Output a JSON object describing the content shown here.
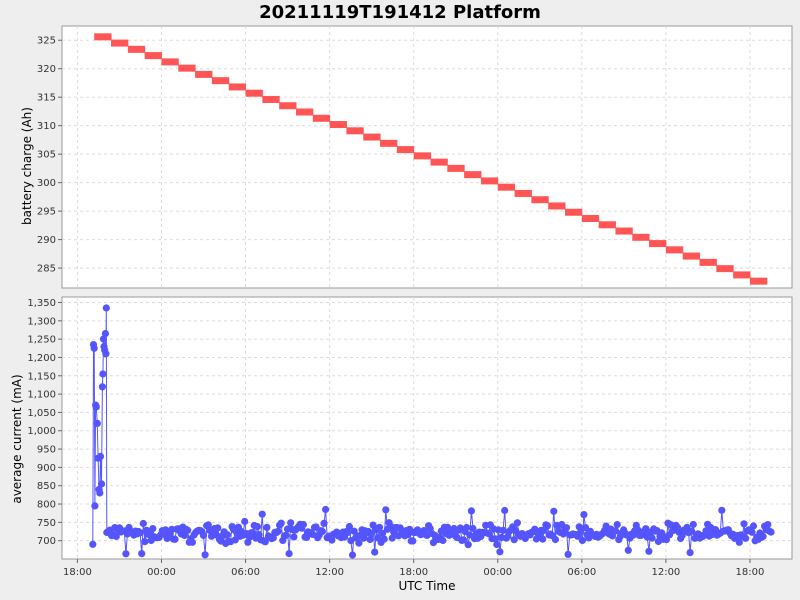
{
  "chart_data": {
    "title": "20211119T191412 Platform",
    "xlabel": "UTC Time",
    "x_ticks": [
      "18:00",
      "00:00",
      "06:00",
      "12:00",
      "18:00",
      "00:00",
      "06:00",
      "12:00",
      "18:00"
    ],
    "x_tick_hours": [
      0,
      6,
      12,
      18,
      24,
      30,
      36,
      42,
      48
    ],
    "x_range_hours": [
      -1.1,
      51.0
    ],
    "panels": [
      {
        "type": "line",
        "ylabel": "battery charge (Ah)",
        "ylim": [
          281.5,
          327.5
        ],
        "y_ticks": [
          "285",
          "290",
          "295",
          "300",
          "305",
          "310",
          "315",
          "320",
          "325"
        ],
        "y_tick_values": [
          285,
          290,
          295,
          300,
          305,
          310,
          315,
          320,
          325
        ],
        "grid": true,
        "color": "#ff5555",
        "series": [
          {
            "x_start_hours": 1.2,
            "x_end_hours": 49.2,
            "start_value": 325.6,
            "end_value": 282.7,
            "step_value": 1.1
          }
        ]
      },
      {
        "type": "line",
        "ylabel": "average current (mA)",
        "ylim": [
          650,
          1365
        ],
        "y_ticks": [
          "700",
          "750",
          "800",
          "850",
          "900",
          "950",
          "1,000",
          "1,050",
          "1,100",
          "1,150",
          "1,200",
          "1,250",
          "1,300",
          "1,350"
        ],
        "y_tick_values": [
          700,
          750,
          800,
          850,
          900,
          950,
          1000,
          1050,
          1100,
          1150,
          1200,
          1250,
          1300,
          1350
        ],
        "grid": true,
        "color": "#5555ff",
        "series": [
          {
            "spike_x_hours": [
              1.1,
              1.15,
              1.2,
              1.25,
              1.3,
              1.35,
              1.42,
              1.48,
              1.55,
              1.6,
              1.65,
              1.72,
              1.78,
              1.82,
              1.86,
              1.9,
              1.95,
              2.0,
              2.03,
              2.06
            ],
            "spike_values": [
              690,
              1235,
              1225,
              795,
              1070,
              1065,
              1020,
              925,
              840,
              830,
              930,
              855,
              1120,
              1155,
              1250,
              1230,
              1220,
              1265,
              1210,
              1335
            ],
            "baseline_x_start_hours": 2.1,
            "baseline_x_end_hours": 49.5,
            "baseline_count": 420,
            "baseline_mean": 720,
            "baseline_spread": 20,
            "baseline_min": 660,
            "baseline_max": 785
          }
        ]
      }
    ]
  }
}
